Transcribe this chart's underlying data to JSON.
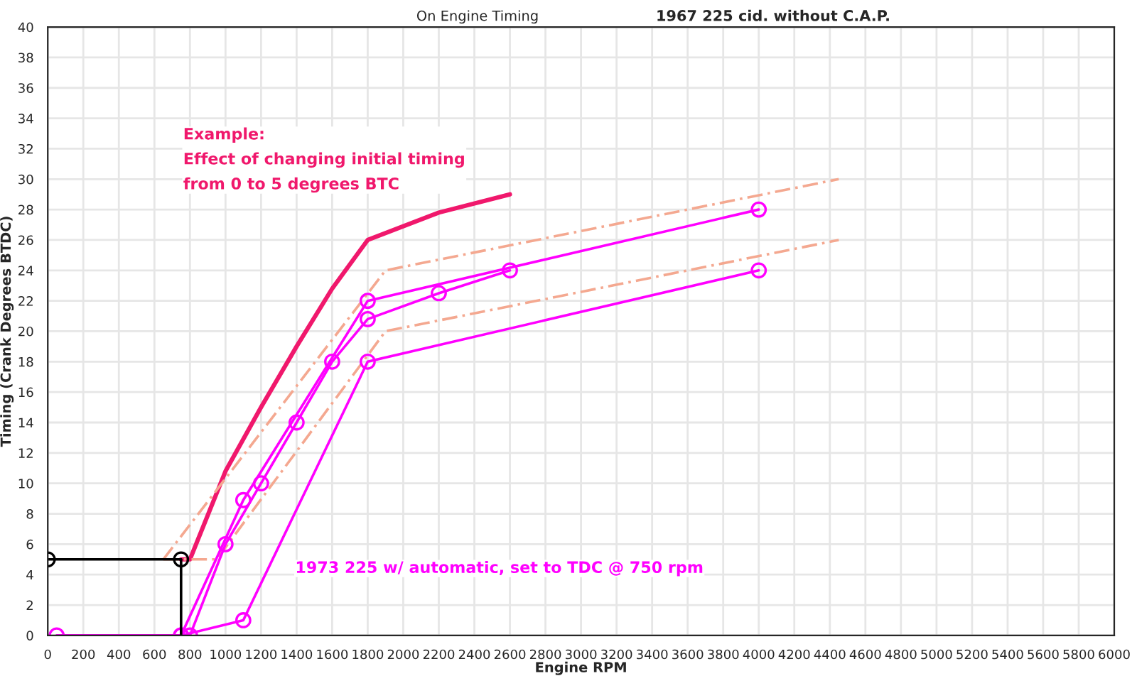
{
  "chart_data": {
    "type": "line",
    "title": "On Engine Timing",
    "subtitle": "1967 225 cid. without C.A.P.",
    "xlabel": "Engine RPM",
    "ylabel": "Timing (Crank Degrees BTDC)",
    "series": [
      {
        "color": "#f0186c",
        "marker": "none",
        "line_style": "solid",
        "x": [
          750,
          800,
          1000,
          1200,
          1400,
          1600,
          1800,
          2200,
          2600
        ],
        "values": [
          5,
          5,
          10.8,
          15,
          19,
          22.8,
          26,
          27.8,
          29
        ]
      },
      {
        "color": "#f4a890",
        "marker": "none",
        "line_style": "dashed",
        "x": [
          650,
          1900,
          4450
        ],
        "values": [
          5,
          24,
          30
        ]
      },
      {
        "color": "#f4a890",
        "marker": "none",
        "line_style": "dashed",
        "x": [
          650,
          950,
          1900,
          4450
        ],
        "values": [
          5,
          5,
          20,
          26
        ]
      },
      {
        "color": "#ff00ff",
        "marker": "circle",
        "line_style": "solid",
        "x": [
          50,
          750,
          1100,
          1800,
          4000
        ],
        "values": [
          0,
          0,
          8.9,
          22,
          28
        ]
      },
      {
        "color": "#ff00ff",
        "marker": "circle",
        "line_style": "solid",
        "x": [
          750,
          1100,
          1800,
          4000
        ],
        "values": [
          0,
          1,
          18,
          24
        ]
      },
      {
        "color": "#ff00ff",
        "marker": "circle",
        "line_style": "solid",
        "x": [
          800,
          1000,
          1200,
          1400,
          1600,
          1800,
          2200,
          2600
        ],
        "values": [
          0,
          6,
          10,
          14,
          18,
          20.8,
          22.5,
          24
        ]
      },
      {
        "color": "#000000",
        "marker": "circle",
        "line_style": "solid",
        "x": [
          0,
          750
        ],
        "values": [
          5,
          5
        ]
      },
      {
        "color": "#000000",
        "marker": "none",
        "line_style": "solid",
        "x": [
          750,
          750
        ],
        "values": [
          0,
          5
        ]
      }
    ],
    "annotations": [
      "Example:\nEffect of changing initial timing\nfrom 0 to 5 degrees BTC",
      "1973 225 w/ automatic, set to TDC @ 750 rpm"
    ],
    "xlim": [
      0,
      6000
    ],
    "xticks": [
      0,
      200,
      400,
      600,
      800,
      1000,
      1200,
      1400,
      1600,
      1800,
      2000,
      2200,
      2400,
      2600,
      2800,
      3000,
      3200,
      3400,
      3600,
      3800,
      4000,
      4200,
      4400,
      4600,
      4800,
      5000,
      5200,
      5400,
      5600,
      5800,
      6000
    ],
    "ylim": [
      0,
      40
    ],
    "yticks": [
      0,
      2,
      4,
      6,
      8,
      10,
      12,
      14,
      16,
      18,
      20,
      22,
      24,
      26,
      28,
      30,
      32,
      34,
      36,
      38,
      40
    ],
    "grid": true,
    "legend": false
  }
}
